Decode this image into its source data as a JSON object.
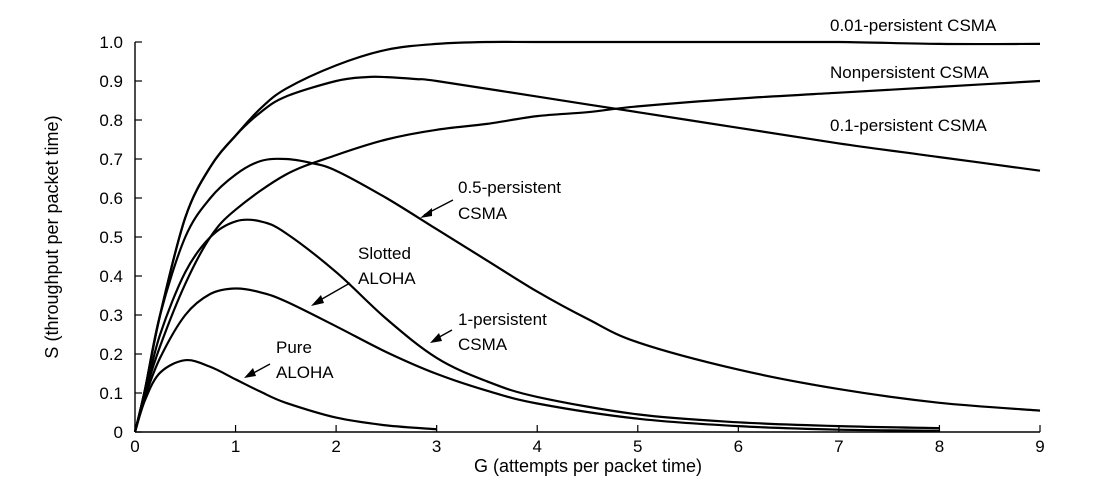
{
  "chart_data": {
    "type": "line",
    "xlabel": "G (attempts per packet time)",
    "ylabel": "S (throughput per packet time)",
    "xlim": [
      0,
      9
    ],
    "ylim": [
      0,
      1.0
    ],
    "x_ticks": [
      "0",
      "1",
      "2",
      "3",
      "4",
      "5",
      "6",
      "7",
      "8",
      "9"
    ],
    "y_ticks": [
      "0",
      "0.1",
      "0.2",
      "0.3",
      "0.4",
      "0.5",
      "0.6",
      "0.7",
      "0.8",
      "0.9",
      "1.0"
    ],
    "grid": false,
    "series": [
      {
        "name": "0.01-persistent CSMA",
        "x": [
          0,
          0.1,
          0.25,
          0.5,
          0.75,
          1.0,
          1.25,
          1.5,
          2.0,
          2.5,
          3.0,
          3.5,
          4,
          5,
          6,
          7,
          8,
          9
        ],
        "y": [
          0,
          0.11,
          0.3,
          0.55,
          0.68,
          0.76,
          0.83,
          0.88,
          0.94,
          0.98,
          0.995,
          1.0,
          1.0,
          1.0,
          1.0,
          1.0,
          0.995,
          0.995
        ]
      },
      {
        "name": "Nonpersistent CSMA",
        "x": [
          0,
          0.1,
          0.25,
          0.5,
          0.75,
          1.0,
          1.5,
          2.0,
          2.5,
          3.0,
          3.5,
          4,
          4.5,
          5,
          6,
          7,
          8,
          9
        ],
        "y": [
          0,
          0.1,
          0.22,
          0.38,
          0.5,
          0.57,
          0.66,
          0.71,
          0.75,
          0.775,
          0.79,
          0.81,
          0.82,
          0.835,
          0.855,
          0.87,
          0.885,
          0.9
        ]
      },
      {
        "name": "0.1-persistent CSMA",
        "x": [
          0,
          0.1,
          0.25,
          0.5,
          0.75,
          1.0,
          1.25,
          1.5,
          2.0,
          2.3,
          2.5,
          2.8,
          3.0,
          4,
          5,
          6,
          7,
          8,
          9
        ],
        "y": [
          0,
          0.11,
          0.3,
          0.55,
          0.68,
          0.76,
          0.82,
          0.86,
          0.9,
          0.91,
          0.91,
          0.905,
          0.9,
          0.86,
          0.82,
          0.78,
          0.74,
          0.705,
          0.67
        ]
      },
      {
        "name": "0.5-persistent CSMA",
        "x": [
          0,
          0.1,
          0.25,
          0.5,
          0.75,
          1.0,
          1.25,
          1.5,
          1.75,
          2.0,
          2.5,
          3.0,
          3.5,
          4,
          4.5,
          5,
          6,
          7,
          8,
          9
        ],
        "y": [
          0,
          0.11,
          0.3,
          0.5,
          0.6,
          0.66,
          0.695,
          0.7,
          0.69,
          0.67,
          0.6,
          0.52,
          0.44,
          0.36,
          0.29,
          0.23,
          0.16,
          0.11,
          0.075,
          0.055
        ]
      },
      {
        "name": "1-persistent CSMA",
        "x": [
          0,
          0.1,
          0.25,
          0.5,
          0.75,
          1.0,
          1.25,
          1.5,
          2.0,
          2.5,
          3.0,
          3.5,
          4,
          5,
          6,
          7,
          8
        ],
        "y": [
          0,
          0.1,
          0.25,
          0.41,
          0.5,
          0.54,
          0.54,
          0.51,
          0.41,
          0.29,
          0.19,
          0.13,
          0.09,
          0.045,
          0.025,
          0.015,
          0.01
        ]
      },
      {
        "name": "Slotted ALOHA",
        "x": [
          0,
          0.1,
          0.25,
          0.5,
          0.75,
          1.0,
          1.25,
          1.5,
          2.0,
          2.5,
          3.0,
          3.5,
          4,
          5,
          6,
          7,
          8
        ],
        "y": [
          0,
          0.09,
          0.19,
          0.3,
          0.354,
          0.368,
          0.358,
          0.335,
          0.271,
          0.205,
          0.149,
          0.106,
          0.073,
          0.034,
          0.015,
          0.006,
          0.003
        ]
      },
      {
        "name": "Pure ALOHA",
        "x": [
          0,
          0.1,
          0.25,
          0.5,
          0.75,
          1.0,
          1.25,
          1.5,
          2.0,
          2.5,
          3.0
        ],
        "y": [
          0,
          0.082,
          0.152,
          0.184,
          0.167,
          0.135,
          0.103,
          0.075,
          0.037,
          0.017,
          0.007
        ]
      }
    ],
    "annotations": {
      "csma_001": "0.01-persistent CSMA",
      "nonpersistent": "Nonpersistent CSMA",
      "csma_01": "0.1-persistent CSMA",
      "csma_05_line1": "0.5-persistent",
      "csma_05_line2": "CSMA",
      "slotted_line1": "Slotted",
      "slotted_line2": "ALOHA",
      "csma_1_line1": "1-persistent",
      "csma_1_line2": "CSMA",
      "pure_line1": "Pure",
      "pure_line2": "ALOHA"
    }
  }
}
